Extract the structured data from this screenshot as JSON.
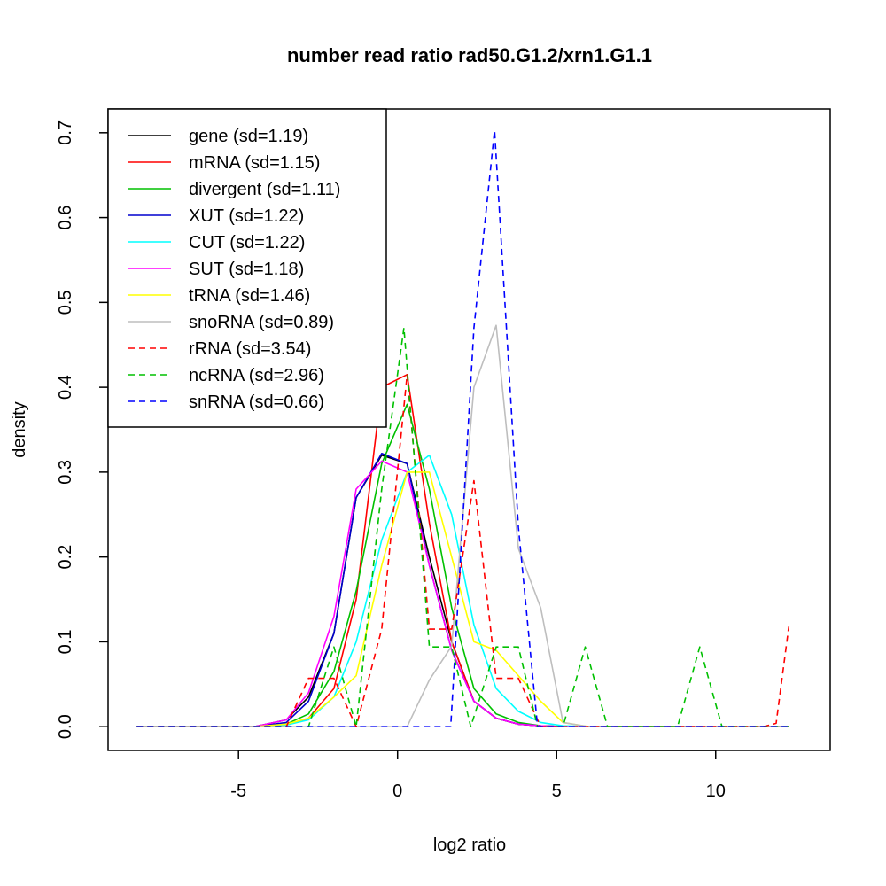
{
  "chart_data": {
    "type": "line",
    "title": "number read ratio rad50.G1.2/xrn1.G1.1",
    "xlabel": "log2 ratio",
    "ylabel": "density",
    "xlim": [
      -9.1,
      13.6
    ],
    "ylim": [
      -0.028,
      0.728
    ],
    "xticks": [
      -5,
      0,
      5,
      10
    ],
    "yticks": [
      0.0,
      0.1,
      0.2,
      0.3,
      0.4,
      0.5,
      0.6,
      0.7
    ],
    "legend_position": "top-left",
    "grid": false,
    "series": [
      {
        "name": "gene (sd=1.19)",
        "color": "#000000",
        "dash": false,
        "x": [
          -8.2,
          -4.5,
          -3.5,
          -2.8,
          -2.0,
          -1.3,
          -0.5,
          0.3,
          1.0,
          1.7,
          2.4,
          3.1,
          3.8,
          4.5,
          5.2,
          6.0,
          7.5,
          9.0,
          10.5,
          12.3
        ],
        "y": [
          0,
          0,
          0.008,
          0.035,
          0.11,
          0.27,
          0.32,
          0.31,
          0.2,
          0.1,
          0.03,
          0.01,
          0.003,
          0.001,
          0,
          0,
          0,
          0,
          0,
          0
        ]
      },
      {
        "name": "mRNA (sd=1.15)",
        "color": "#ff0000",
        "dash": false,
        "x": [
          -8.2,
          -4.5,
          -3.5,
          -2.8,
          -2.0,
          -1.3,
          -0.5,
          0.3,
          1.0,
          1.7,
          2.4,
          3.1,
          3.8,
          4.5,
          5.2,
          6.0,
          7.5,
          9.0,
          10.5,
          12.3
        ],
        "y": [
          0,
          0,
          0.002,
          0.01,
          0.045,
          0.15,
          0.4,
          0.415,
          0.24,
          0.1,
          0.03,
          0.01,
          0.003,
          0.001,
          0,
          0,
          0,
          0,
          0,
          0
        ]
      },
      {
        "name": "divergent (sd=1.11)",
        "color": "#00c000",
        "dash": false,
        "x": [
          -8.2,
          -4.5,
          -3.5,
          -2.8,
          -2.0,
          -1.3,
          -0.5,
          0.3,
          1.0,
          1.7,
          2.4,
          3.1,
          3.8,
          4.5,
          5.2,
          6.0,
          7.5,
          9.0,
          10.5,
          12.3
        ],
        "y": [
          0,
          0,
          0.003,
          0.015,
          0.065,
          0.16,
          0.31,
          0.38,
          0.28,
          0.14,
          0.045,
          0.015,
          0.005,
          0.001,
          0,
          0,
          0,
          0,
          0,
          0
        ]
      },
      {
        "name": "XUT (sd=1.22)",
        "color": "#0000cd",
        "dash": false,
        "x": [
          -8.2,
          -4.5,
          -3.5,
          -2.8,
          -2.0,
          -1.3,
          -0.5,
          0.3,
          1.0,
          1.7,
          2.4,
          3.1,
          3.8,
          4.5,
          5.2,
          6.0,
          7.5,
          9.0,
          10.5,
          12.3
        ],
        "y": [
          0,
          0,
          0.005,
          0.03,
          0.11,
          0.27,
          0.322,
          0.31,
          0.19,
          0.09,
          0.03,
          0.01,
          0.003,
          0.001,
          0,
          0,
          0,
          0,
          0,
          0
        ]
      },
      {
        "name": "CUT (sd=1.22)",
        "color": "#00ffff",
        "dash": false,
        "x": [
          -8.2,
          -4.5,
          -3.5,
          -2.8,
          -2.0,
          -1.3,
          -0.5,
          0.3,
          1.0,
          1.7,
          2.4,
          3.1,
          3.8,
          4.5,
          5.2,
          6.0,
          7.5,
          9.0,
          10.5,
          12.3
        ],
        "y": [
          0,
          0,
          0.002,
          0.008,
          0.035,
          0.1,
          0.22,
          0.3,
          0.32,
          0.25,
          0.12,
          0.045,
          0.018,
          0.005,
          0.001,
          0,
          0,
          0,
          0,
          0
        ]
      },
      {
        "name": "SUT (sd=1.18)",
        "color": "#ff00ff",
        "dash": false,
        "x": [
          -8.2,
          -4.5,
          -3.5,
          -2.8,
          -2.0,
          -1.3,
          -0.5,
          0.3,
          1.0,
          1.7,
          2.4,
          3.1,
          3.8,
          4.5,
          5.2,
          6.0,
          7.5,
          9.0,
          10.5,
          12.3
        ],
        "y": [
          0,
          0,
          0.008,
          0.04,
          0.13,
          0.28,
          0.313,
          0.3,
          0.19,
          0.09,
          0.03,
          0.01,
          0.003,
          0.001,
          0,
          0,
          0,
          0,
          0,
          0
        ]
      },
      {
        "name": "tRNA (sd=1.46)",
        "color": "#ffff00",
        "dash": false,
        "x": [
          -8.2,
          -4.5,
          -3.5,
          -2.8,
          -2.0,
          -1.3,
          -0.5,
          0.3,
          1.0,
          1.7,
          2.4,
          3.1,
          3.8,
          4.5,
          5.2,
          6.0,
          7.5,
          9.0,
          10.5,
          12.3
        ],
        "y": [
          0,
          0,
          0.003,
          0.01,
          0.035,
          0.06,
          0.19,
          0.3,
          0.3,
          0.2,
          0.1,
          0.09,
          0.06,
          0.03,
          0.005,
          0,
          0,
          0,
          0,
          0
        ]
      },
      {
        "name": "snoRNA (sd=0.89)",
        "color": "#bebebe",
        "dash": false,
        "x": [
          -8.2,
          -4.5,
          -3.5,
          -2.8,
          -2.0,
          -1.3,
          -0.5,
          0.3,
          1.0,
          1.7,
          2.4,
          3.1,
          3.8,
          4.5,
          5.2,
          6.0,
          7.5,
          9.0,
          10.5,
          12.3
        ],
        "y": [
          0,
          0,
          0,
          0,
          0,
          0,
          0,
          0,
          0.055,
          0.095,
          0.4,
          0.473,
          0.21,
          0.14,
          0.005,
          0,
          0,
          0,
          0,
          0
        ]
      },
      {
        "name": "rRNA (sd=3.54)",
        "color": "#ff0000",
        "dash": true,
        "x": [
          -8.2,
          -4.5,
          -3.5,
          -2.8,
          -2.4,
          -2.0,
          -1.3,
          -0.5,
          0.3,
          1.0,
          1.7,
          2.4,
          3.1,
          3.8,
          4.5,
          5.2,
          6.0,
          7.5,
          9.0,
          10.5,
          11.5,
          11.9,
          12.3
        ],
        "y": [
          0,
          0,
          0,
          0.057,
          0.057,
          0.057,
          0,
          0.115,
          0.415,
          0.115,
          0.115,
          0.29,
          0.057,
          0.057,
          0,
          0,
          0,
          0,
          0,
          0,
          0,
          0.004,
          0.118
        ]
      },
      {
        "name": "ncRNA (sd=2.96)",
        "color": "#00c000",
        "dash": true,
        "x": [
          -8.2,
          -4.5,
          -3.5,
          -2.8,
          -2.0,
          -1.3,
          -0.5,
          0.2,
          1.0,
          1.7,
          2.3,
          3.1,
          3.8,
          4.4,
          5.2,
          5.9,
          6.6,
          7.5,
          8.8,
          9.5,
          10.2,
          12.3
        ],
        "y": [
          0,
          0,
          0,
          0,
          0.094,
          0,
          0.28,
          0.47,
          0.094,
          0.094,
          0,
          0.094,
          0.094,
          0,
          0,
          0.094,
          0,
          0,
          0,
          0.094,
          0,
          0
        ]
      },
      {
        "name": "snRNA (sd=0.66)",
        "color": "#0000ff",
        "dash": true,
        "x": [
          -8.2,
          -4.5,
          -3.5,
          -2.8,
          -2.0,
          -1.3,
          -0.5,
          0.3,
          1.0,
          1.67,
          2.4,
          3.05,
          3.8,
          4.4,
          5.2,
          6.0,
          7.5,
          9.0,
          10.5,
          12.3
        ],
        "y": [
          0,
          0,
          0,
          0,
          0,
          0,
          0,
          0,
          0,
          0,
          0.47,
          0.703,
          0.235,
          0,
          0,
          0,
          0,
          0,
          0,
          0
        ]
      }
    ]
  }
}
